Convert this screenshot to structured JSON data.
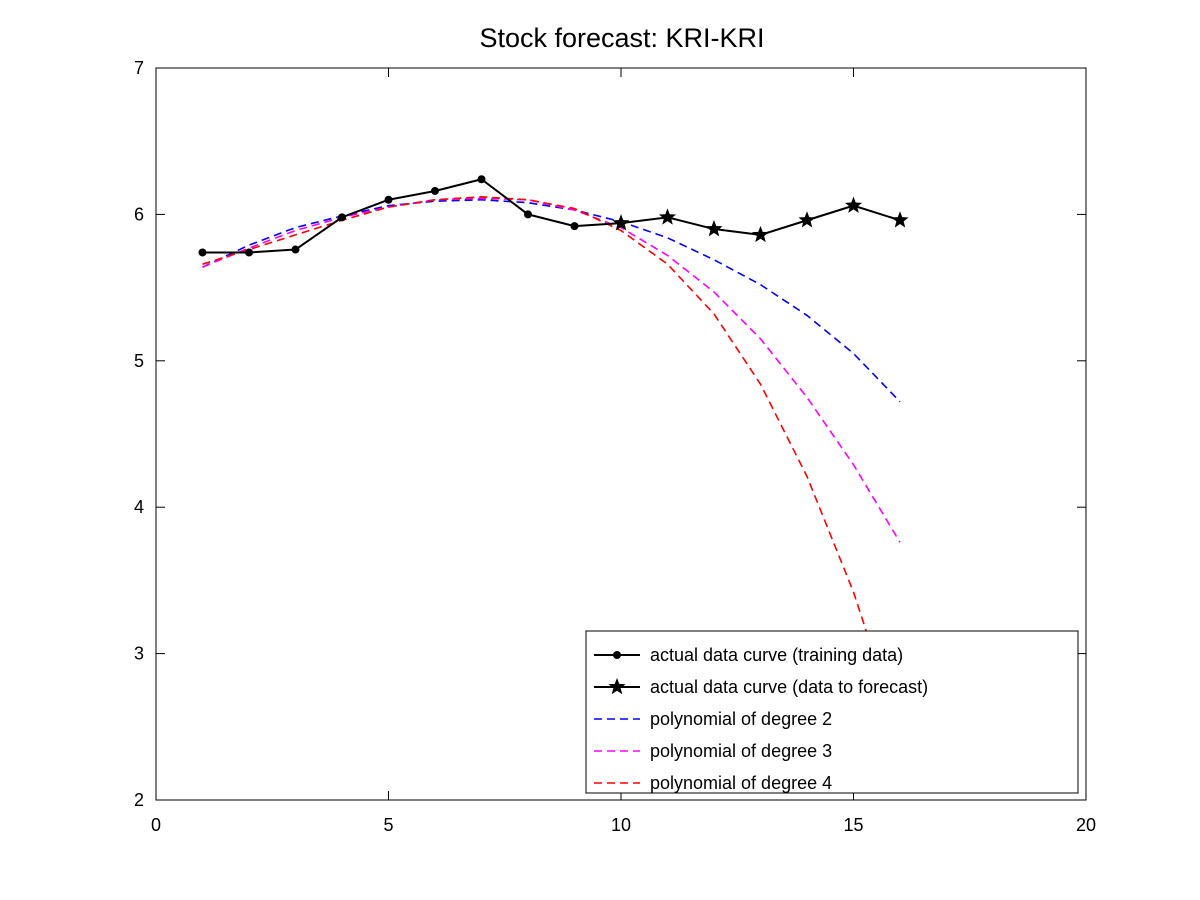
{
  "chart_data": {
    "type": "line",
    "title": "Stock forecast: KRI-KRI",
    "xlabel": "",
    "ylabel": "",
    "xlim": [
      0,
      20
    ],
    "ylim": [
      2,
      7
    ],
    "x_ticks": [
      0,
      5,
      10,
      15,
      20
    ],
    "y_ticks": [
      2,
      3,
      4,
      5,
      6,
      7
    ],
    "grid": false,
    "legend_position": "bottom-right",
    "series": [
      {
        "name": "actual data curve (training data)",
        "color": "#000000",
        "style": "solid",
        "marker": "dot",
        "x": [
          1,
          2,
          3,
          4,
          5,
          6,
          7,
          8,
          9,
          10
        ],
        "y": [
          5.74,
          5.74,
          5.76,
          5.98,
          6.1,
          6.16,
          6.24,
          6.0,
          5.92,
          5.94
        ]
      },
      {
        "name": "actual data curve (data to forecast)",
        "color": "#000000",
        "style": "solid",
        "marker": "star",
        "x": [
          10,
          11,
          12,
          13,
          14,
          15,
          16
        ],
        "y": [
          5.94,
          5.98,
          5.9,
          5.86,
          5.96,
          6.06,
          5.96
        ]
      },
      {
        "name": "polynomial of degree 2",
        "color": "#0000ff",
        "style": "dashed",
        "marker": "none",
        "x": [
          1,
          2,
          3,
          4,
          5,
          6,
          7,
          8,
          9,
          10,
          11,
          12,
          13,
          14,
          15,
          16
        ],
        "y": [
          5.64,
          5.79,
          5.91,
          5.99,
          6.06,
          6.09,
          6.1,
          6.08,
          6.03,
          5.95,
          5.84,
          5.69,
          5.52,
          5.31,
          5.05,
          4.72
        ]
      },
      {
        "name": "polynomial of degree 3",
        "color": "#ff00ff",
        "style": "dashed",
        "marker": "none",
        "x": [
          1,
          2,
          3,
          4,
          5,
          6,
          7,
          8,
          9,
          10,
          11,
          12,
          13,
          14,
          15,
          16
        ],
        "y": [
          5.64,
          5.77,
          5.89,
          5.98,
          6.05,
          6.1,
          6.11,
          6.1,
          6.03,
          5.91,
          5.72,
          5.47,
          5.15,
          4.75,
          4.29,
          3.76
        ]
      },
      {
        "name": "polynomial of degree 4",
        "color": "#ff0000",
        "style": "dashed",
        "marker": "none",
        "x": [
          1,
          2,
          3,
          4,
          5,
          6,
          7,
          8,
          9,
          10,
          11,
          12,
          13,
          14,
          15,
          16
        ],
        "y": [
          5.66,
          5.76,
          5.86,
          5.96,
          6.05,
          6.1,
          6.12,
          6.1,
          6.04,
          5.89,
          5.66,
          5.32,
          4.84,
          4.21,
          3.42,
          2.45
        ]
      }
    ]
  }
}
